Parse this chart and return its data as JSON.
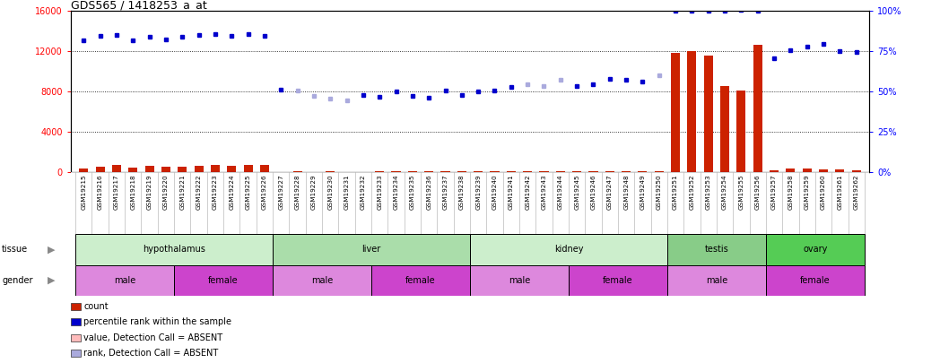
{
  "title": "GDS565 / 1418253_a_at",
  "samples": [
    "GSM19215",
    "GSM19216",
    "GSM19217",
    "GSM19218",
    "GSM19219",
    "GSM19220",
    "GSM19221",
    "GSM19222",
    "GSM19223",
    "GSM19224",
    "GSM19225",
    "GSM19226",
    "GSM19227",
    "GSM19228",
    "GSM19229",
    "GSM19230",
    "GSM19231",
    "GSM19232",
    "GSM19233",
    "GSM19234",
    "GSM19235",
    "GSM19236",
    "GSM19237",
    "GSM19238",
    "GSM19239",
    "GSM19240",
    "GSM19241",
    "GSM19242",
    "GSM19243",
    "GSM19244",
    "GSM19245",
    "GSM19246",
    "GSM19247",
    "GSM19248",
    "GSM19249",
    "GSM19250",
    "GSM19251",
    "GSM19252",
    "GSM19253",
    "GSM19254",
    "GSM19255",
    "GSM19256",
    "GSM19257",
    "GSM19258",
    "GSM19259",
    "GSM19260",
    "GSM19261",
    "GSM19262"
  ],
  "count_values": [
    380,
    550,
    700,
    480,
    680,
    540,
    560,
    620,
    720,
    640,
    760,
    720,
    60,
    90,
    70,
    90,
    70,
    70,
    80,
    80,
    80,
    80,
    80,
    80,
    80,
    80,
    80,
    80,
    80,
    80,
    80,
    80,
    80,
    80,
    80,
    80,
    11800,
    12000,
    11600,
    8600,
    8100,
    12600,
    180,
    350,
    380,
    290,
    280,
    170
  ],
  "rank_values": [
    13100,
    13500,
    13600,
    13100,
    13400,
    13200,
    13400,
    13600,
    13700,
    13500,
    13700,
    13500,
    8200,
    8150,
    7600,
    7300,
    7100,
    7700,
    7500,
    8000,
    7600,
    7400,
    8100,
    7700,
    8000,
    8150,
    8500,
    8700,
    8600,
    9200,
    8600,
    8700,
    9300,
    9200,
    9000,
    9600,
    16000,
    16000,
    16000,
    16000,
    16100,
    16000,
    11300,
    12100,
    12500,
    12700,
    12000,
    11900
  ],
  "rank_absent_indices": [
    13,
    14,
    15,
    16,
    27,
    28,
    29,
    35
  ],
  "count_absent_indices": [],
  "tissue_groups": [
    {
      "label": "hypothalamus",
      "start": 0,
      "end": 12,
      "color": "#cceecc"
    },
    {
      "label": "liver",
      "start": 12,
      "end": 24,
      "color": "#aaddaa"
    },
    {
      "label": "kidney",
      "start": 24,
      "end": 36,
      "color": "#cceecc"
    },
    {
      "label": "testis",
      "start": 36,
      "end": 42,
      "color": "#88cc88"
    },
    {
      "label": "ovary",
      "start": 42,
      "end": 48,
      "color": "#55cc55"
    }
  ],
  "gender_groups": [
    {
      "label": "male",
      "start": 0,
      "end": 6,
      "color": "#dd88dd"
    },
    {
      "label": "female",
      "start": 6,
      "end": 12,
      "color": "#cc44cc"
    },
    {
      "label": "male",
      "start": 12,
      "end": 18,
      "color": "#dd88dd"
    },
    {
      "label": "female",
      "start": 18,
      "end": 24,
      "color": "#cc44cc"
    },
    {
      "label": "male",
      "start": 24,
      "end": 30,
      "color": "#dd88dd"
    },
    {
      "label": "female",
      "start": 30,
      "end": 36,
      "color": "#cc44cc"
    },
    {
      "label": "male",
      "start": 36,
      "end": 42,
      "color": "#dd88dd"
    },
    {
      "label": "female",
      "start": 42,
      "end": 48,
      "color": "#cc44cc"
    }
  ],
  "ylim_left": [
    0,
    16000
  ],
  "yticks_left": [
    0,
    4000,
    8000,
    12000,
    16000
  ],
  "ylim_right": [
    0,
    100
  ],
  "yticks_right": [
    0,
    25,
    50,
    75,
    100
  ],
  "color_count": "#cc2200",
  "color_rank": "#0000cc",
  "color_absent_count": "#ffbbbb",
  "color_absent_rank": "#aaaadd",
  "bar_width": 0.55,
  "bg_color": "#ffffff"
}
